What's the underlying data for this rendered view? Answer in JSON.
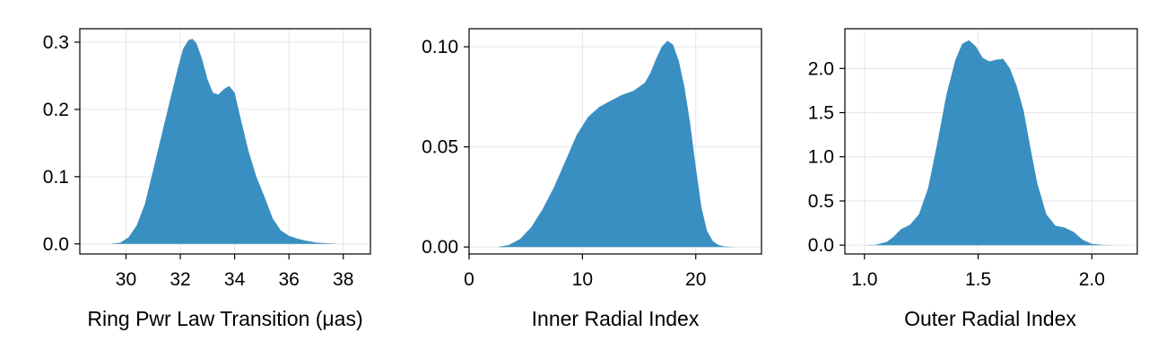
{
  "chart_data": [
    {
      "type": "area",
      "xlabel": "Ring Pwr Law Transition (μas)",
      "ylabel": "",
      "xlim": [
        28.3,
        39.0
      ],
      "ylim": [
        -0.015,
        0.32
      ],
      "xticks": [
        30,
        32,
        34,
        36,
        38
      ],
      "xtick_labels": [
        "30",
        "32",
        "34",
        "36",
        "38"
      ],
      "yticks": [
        0.0,
        0.1,
        0.2,
        0.3
      ],
      "ytick_labels": [
        "0.0",
        "0.1",
        "0.2",
        "0.3"
      ],
      "grid": true,
      "fill_color": "#3a8fc2",
      "x": [
        29.4,
        29.8,
        30.1,
        30.4,
        30.7,
        31.0,
        31.3,
        31.6,
        31.9,
        32.1,
        32.3,
        32.45,
        32.6,
        32.8,
        33.0,
        33.2,
        33.4,
        33.6,
        33.8,
        34.0,
        34.2,
        34.5,
        34.8,
        35.1,
        35.4,
        35.7,
        36.0,
        36.3,
        36.6,
        37.0,
        37.4,
        37.8
      ],
      "y": [
        0.0,
        0.002,
        0.01,
        0.028,
        0.06,
        0.11,
        0.16,
        0.21,
        0.26,
        0.29,
        0.303,
        0.305,
        0.298,
        0.275,
        0.245,
        0.225,
        0.222,
        0.23,
        0.235,
        0.225,
        0.19,
        0.14,
        0.1,
        0.07,
        0.038,
        0.02,
        0.012,
        0.008,
        0.005,
        0.002,
        0.001,
        0.0
      ]
    },
    {
      "type": "area",
      "xlabel": "Inner Radial Index",
      "ylabel": "",
      "xlim": [
        0.0,
        25.8
      ],
      "ylim": [
        -0.0035,
        0.109
      ],
      "xticks": [
        0,
        10,
        20
      ],
      "xtick_labels": [
        "0",
        "10",
        "20"
      ],
      "yticks": [
        0.0,
        0.05,
        0.1
      ],
      "ytick_labels": [
        "0.00",
        "0.05",
        "0.10"
      ],
      "grid": true,
      "fill_color": "#3a8fc2",
      "x": [
        2.5,
        3.5,
        4.5,
        5.5,
        6.5,
        7.5,
        8.5,
        9.5,
        10.5,
        11.5,
        12.5,
        13.5,
        14.5,
        15.5,
        16.0,
        16.5,
        17.0,
        17.5,
        18.0,
        18.5,
        19.0,
        19.5,
        20.0,
        20.5,
        21.0,
        21.5,
        22.0,
        22.5,
        23.5
      ],
      "y": [
        0.0,
        0.001,
        0.004,
        0.01,
        0.019,
        0.03,
        0.043,
        0.056,
        0.065,
        0.07,
        0.073,
        0.076,
        0.078,
        0.082,
        0.087,
        0.094,
        0.1,
        0.103,
        0.101,
        0.093,
        0.08,
        0.062,
        0.04,
        0.02,
        0.008,
        0.003,
        0.001,
        0.0003,
        0.0
      ]
    },
    {
      "type": "area",
      "xlabel": "Outer Radial Index",
      "ylabel": "",
      "xlim": [
        0.914,
        2.2
      ],
      "ylim": [
        -0.1,
        2.45
      ],
      "xticks": [
        1.0,
        1.5,
        2.0
      ],
      "xtick_labels": [
        "1.0",
        "1.5",
        "2.0"
      ],
      "yticks": [
        0.0,
        0.5,
        1.0,
        1.5,
        2.0
      ],
      "ytick_labels": [
        "0.0",
        "0.5",
        "1.0",
        "1.5",
        "2.0"
      ],
      "grid": true,
      "fill_color": "#3a8fc2",
      "x": [
        1.0,
        1.05,
        1.1,
        1.13,
        1.16,
        1.2,
        1.24,
        1.28,
        1.32,
        1.36,
        1.4,
        1.43,
        1.46,
        1.49,
        1.52,
        1.55,
        1.58,
        1.61,
        1.64,
        1.67,
        1.7,
        1.73,
        1.76,
        1.8,
        1.84,
        1.88,
        1.92,
        1.96,
        2.0,
        2.05,
        2.1
      ],
      "y": [
        0.0,
        0.005,
        0.04,
        0.1,
        0.18,
        0.23,
        0.35,
        0.65,
        1.15,
        1.7,
        2.1,
        2.28,
        2.32,
        2.25,
        2.12,
        2.08,
        2.1,
        2.11,
        2.0,
        1.8,
        1.52,
        1.1,
        0.7,
        0.35,
        0.22,
        0.2,
        0.15,
        0.06,
        0.015,
        0.003,
        0.0
      ]
    }
  ]
}
